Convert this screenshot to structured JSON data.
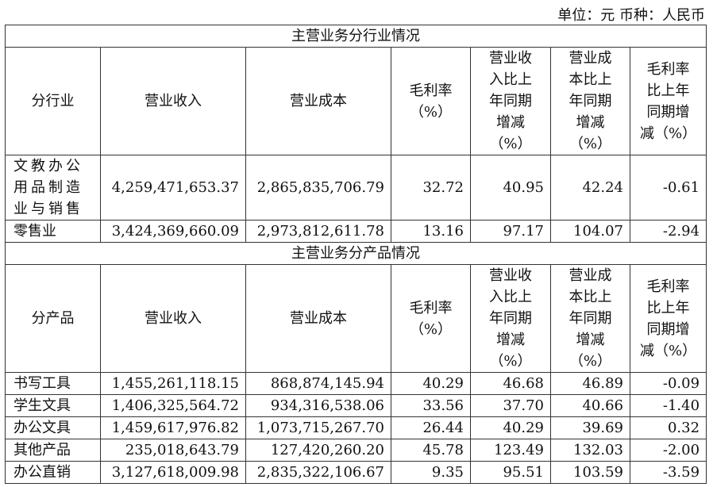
{
  "unit_note": "单位：元 币种：人民币",
  "columns_industry": [
    [
      "分行业"
    ],
    [
      "营业收入"
    ],
    [
      "营业成本"
    ],
    [
      "毛利率",
      "（%）"
    ],
    [
      "营业收",
      "入比上",
      "年同期",
      "增减",
      "（%）"
    ],
    [
      "营业成",
      "本比上",
      "年同期",
      "增减",
      "（%）"
    ],
    [
      "毛利率",
      "比上年",
      "同期增",
      "减（%）"
    ]
  ],
  "columns_product": [
    [
      "分产品"
    ],
    [
      "营业收入"
    ],
    [
      "营业成本"
    ],
    [
      "毛利率",
      "（%）"
    ],
    [
      "营业收",
      "入比上",
      "年同期",
      "增减",
      "（%）"
    ],
    [
      "营业成",
      "本比上",
      "年同期",
      "增减",
      "（%）"
    ],
    [
      "毛利率",
      "比上年",
      "同期增",
      "减（%）"
    ]
  ],
  "industry": {
    "title": "主营业务分行业情况",
    "rows": [
      [
        "文教办公用品制造业与销售",
        "4,259,471,653.37",
        "2,865,835,706.79",
        "32.72",
        "40.95",
        "42.24",
        "-0.61"
      ],
      [
        "零售业",
        "3,424,369,660.09",
        "2,973,812,611.78",
        "13.16",
        "97.17",
        "104.07",
        "-2.94"
      ]
    ]
  },
  "product": {
    "title": "主营业务分产品情况",
    "rows": [
      [
        "书写工具",
        "1,455,261,118.15",
        "868,874,145.94",
        "40.29",
        "46.68",
        "46.89",
        "-0.09"
      ],
      [
        "学生文具",
        "1,406,325,564.72",
        "934,316,538.06",
        "33.56",
        "37.70",
        "40.66",
        "-1.40"
      ],
      [
        "办公文具",
        "1,459,617,976.82",
        "1,073,715,267.70",
        "26.44",
        "40.29",
        "39.69",
        "0.32"
      ],
      [
        "其他产品",
        "235,018,643.79",
        "127,420,260.20",
        "45.78",
        "123.49",
        "132.03",
        "-2.00"
      ],
      [
        "办公直销",
        "3,127,618,009.98",
        "2,835,322,106.67",
        "9.35",
        "95.51",
        "103.59",
        "-3.59"
      ]
    ]
  }
}
